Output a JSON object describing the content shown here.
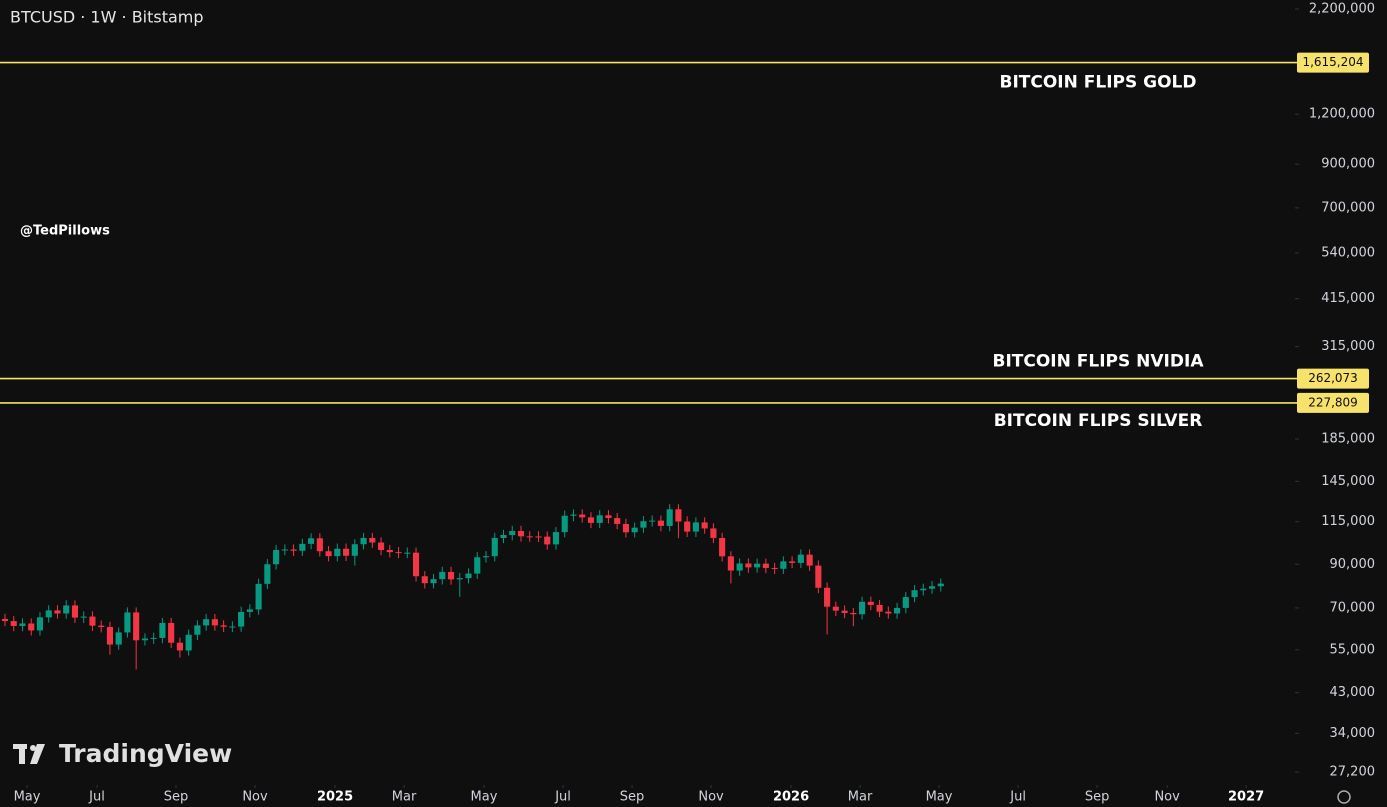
{
  "chart_data": {
    "type": "candlestick",
    "title": "BTCUSD · 1W · Bitstamp",
    "watermark": "@TedPillows",
    "logo": "TradingView",
    "log_scale": true,
    "up_color": "#089981",
    "down_color": "#f23645",
    "level_color": "#f7e36b",
    "ylim": [
      25260,
      2316000
    ],
    "xlim": [
      -0.57,
      147.5
    ],
    "yticks": [
      {
        "value": 27200,
        "label": "27,200"
      },
      {
        "value": 34000,
        "label": "34,000"
      },
      {
        "value": 43000,
        "label": "43,000"
      },
      {
        "value": 55000,
        "label": "55,000"
      },
      {
        "value": 70000,
        "label": "70,000"
      },
      {
        "value": 90000,
        "label": "90,000"
      },
      {
        "value": 115000,
        "label": "115,000"
      },
      {
        "value": 145000,
        "label": "145,000"
      },
      {
        "value": 185000,
        "label": "185,000"
      },
      {
        "value": 315000,
        "label": "315,000"
      },
      {
        "value": 415000,
        "label": "415,000"
      },
      {
        "value": 540000,
        "label": "540,000"
      },
      {
        "value": 700000,
        "label": "700,000"
      },
      {
        "value": 900000,
        "label": "900,000"
      },
      {
        "value": 1200000,
        "label": "1,200,000"
      },
      {
        "value": 2200000,
        "label": "2,200,000"
      }
    ],
    "xticks": [
      {
        "value": 2.52,
        "label": "May"
      },
      {
        "value": 10.52,
        "label": "Jul"
      },
      {
        "value": 19.55,
        "label": "Sep"
      },
      {
        "value": 28.59,
        "label": "Nov"
      },
      {
        "value": 37.74,
        "label": "2025"
      },
      {
        "value": 45.63,
        "label": "Mar"
      },
      {
        "value": 54.77,
        "label": "May"
      },
      {
        "value": 63.81,
        "label": "Jul"
      },
      {
        "value": 71.7,
        "label": "Sep"
      },
      {
        "value": 80.73,
        "label": "Nov"
      },
      {
        "value": 89.88,
        "label": "2026"
      },
      {
        "value": 97.77,
        "label": "Mar"
      },
      {
        "value": 106.8,
        "label": "May"
      },
      {
        "value": 115.84,
        "label": "Jul"
      },
      {
        "value": 124.87,
        "label": "Sep"
      },
      {
        "value": 132.88,
        "label": "Nov"
      },
      {
        "value": 141.91,
        "label": "2027"
      }
    ],
    "levels": {
      "values": [
        1615204,
        262073,
        227809
      ],
      "value_labels": [
        "1,615,204",
        "262,073",
        "227,809"
      ],
      "annotations": [
        "BITCOIN FLIPS GOLD",
        "BITCOIN FLIPS NVIDIA",
        "BITCOIN FLIPS SILVER"
      ]
    },
    "open": [
      65700,
      64900,
      63100,
      64000,
      61500,
      66300,
      69000,
      67800,
      71000,
      66200,
      66600,
      63200,
      62700,
      56700,
      60800,
      68200,
      58100,
      58700,
      58900,
      64200,
      57300,
      54800,
      60000,
      63300,
      65600,
      63300,
      62800,
      62900,
      68400,
      69400,
      80400,
      90000,
      97700,
      98000,
      97300,
      101200,
      104500,
      97000,
      94300,
      98400,
      94500,
      101000,
      104700,
      102000,
      97700,
      96500,
      96100,
      96200,
      84000,
      80700,
      82600,
      86100,
      82500,
      83100,
      85300,
      93700,
      94300,
      104700,
      106500,
      109000,
      105700,
      105600,
      105500,
      100900,
      108300,
      119000,
      119800,
      117900,
      114200,
      119300,
      117400,
      113500,
      108200,
      111100,
      115300,
      115700,
      112200,
      123500,
      115100,
      108600,
      114500,
      110600,
      104700,
      94200,
      86800,
      90400,
      88400,
      90300,
      88100,
      87700,
      91500,
      90700,
      95100,
      89300,
      78600,
      70500,
      68900,
      68000,
      67500,
      72500,
      71200,
      68500,
      67800,
      70000,
      74500,
      77500,
      78200,
      79300
    ],
    "high": [
      67700,
      66800,
      65900,
      65900,
      68300,
      71100,
      71100,
      73100,
      73100,
      68600,
      68600,
      65100,
      64600,
      62600,
      70200,
      70200,
      60500,
      60700,
      66100,
      66100,
      59000,
      61800,
      65200,
      67600,
      67600,
      65200,
      64800,
      70500,
      71500,
      82800,
      92700,
      100600,
      100900,
      100900,
      104200,
      107600,
      107600,
      99900,
      101400,
      101400,
      104000,
      107800,
      107800,
      105100,
      100600,
      99400,
      99100,
      99100,
      86500,
      85100,
      88700,
      88700,
      85600,
      87900,
      96500,
      97100,
      107800,
      109700,
      112300,
      112300,
      108900,
      108800,
      108700,
      111500,
      122600,
      123400,
      123400,
      121400,
      122900,
      122900,
      120900,
      116900,
      114400,
      118800,
      119200,
      119200,
      127200,
      127200,
      118600,
      117900,
      117900,
      113900,
      107800,
      97000,
      93100,
      93100,
      93000,
      93000,
      90700,
      94200,
      94200,
      98000,
      98000,
      92000,
      81000,
      72600,
      71000,
      70000,
      74700,
      74700,
      73300,
      70600,
      72100,
      76700,
      79800,
      80500,
      81700,
      82900
    ],
    "low": [
      63000,
      61200,
      61200,
      59700,
      59700,
      64300,
      65800,
      65800,
      64200,
      64200,
      61300,
      60800,
      53500,
      55000,
      59000,
      49100,
      56400,
      56900,
      57100,
      55600,
      52600,
      53200,
      58200,
      61400,
      61400,
      60900,
      60900,
      61000,
      66300,
      67300,
      78000,
      87300,
      94800,
      94400,
      94400,
      98200,
      94100,
      91500,
      91500,
      91700,
      89300,
      98000,
      98900,
      94800,
      93600,
      93200,
      93200,
      81500,
      78300,
      78300,
      80100,
      80000,
      74600,
      80600,
      82700,
      90900,
      91500,
      101600,
      103300,
      102500,
      102400,
      102300,
      97900,
      97900,
      105100,
      115400,
      114400,
      110800,
      110800,
      113900,
      110100,
      105000,
      105000,
      107800,
      111800,
      108800,
      108800,
      104600,
      105300,
      105300,
      107300,
      101600,
      91400,
      80600,
      84200,
      85700,
      85700,
      85500,
      85100,
      85100,
      88000,
      88000,
      86600,
      76200,
      60100,
      66800,
      66000,
      63000,
      65500,
      69100,
      66400,
      65800,
      65800,
      67900,
      72300,
      75200,
      75900,
      76900
    ],
    "close": [
      64900,
      63100,
      64000,
      61500,
      66300,
      69000,
      67800,
      71000,
      66200,
      66600,
      63200,
      62700,
      56700,
      60800,
      68200,
      58100,
      58700,
      58900,
      64200,
      57300,
      54800,
      60000,
      63300,
      65600,
      63300,
      62800,
      62900,
      68400,
      69400,
      80400,
      90000,
      97700,
      98000,
      97300,
      101200,
      104500,
      97000,
      94300,
      98400,
      94500,
      101000,
      104700,
      102000,
      97700,
      96500,
      96100,
      96200,
      84000,
      80700,
      82600,
      86100,
      82500,
      83100,
      85300,
      93700,
      94300,
      104700,
      106500,
      109000,
      105700,
      105600,
      105500,
      100900,
      108300,
      119000,
      119800,
      117900,
      114200,
      119300,
      117400,
      113500,
      108200,
      111100,
      115300,
      115700,
      112200,
      123500,
      115100,
      108600,
      114500,
      110600,
      104700,
      94200,
      86800,
      90400,
      88400,
      90300,
      88100,
      87700,
      91500,
      90700,
      95100,
      89300,
      78600,
      70500,
      68900,
      68000,
      67500,
      72500,
      71200,
      68500,
      67800,
      70000,
      74500,
      77500,
      78200,
      79300,
      80500
    ]
  }
}
